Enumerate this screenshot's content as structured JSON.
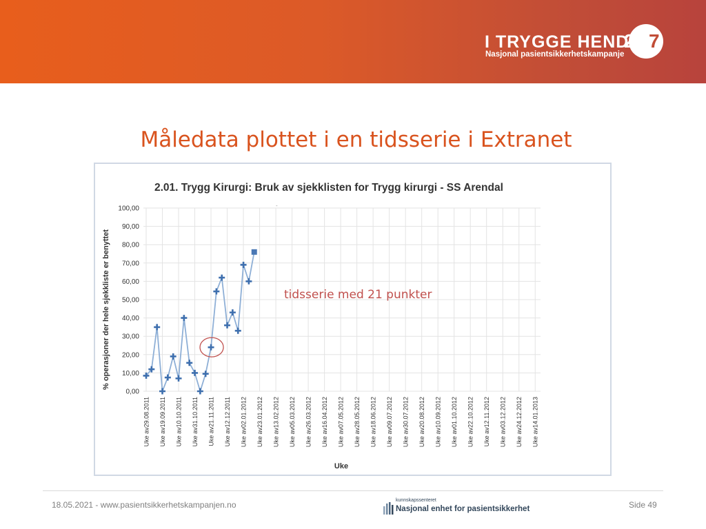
{
  "brand": {
    "title": "I TRYGGE HENDER",
    "subtitle": "Nasjonal pasientsikkerhetskampanje",
    "badge_24": "24",
    "badge_7": "7"
  },
  "slide": {
    "title": "Måledata plottet i en tidsserie i Extranet"
  },
  "chart_data": {
    "type": "line",
    "title": "2.01. Trygg Kirurgi: Bruk av sjekklisten for Trygg kirurgi - SS Arendal",
    "xlabel": "Uke",
    "ylabel": "% operasjoner der hele sjekkliste er benyttet",
    "ylim": [
      0,
      100
    ],
    "y_ticks": [
      "0,00",
      "10,00",
      "20,00",
      "30,00",
      "40,00",
      "50,00",
      "60,00",
      "70,00",
      "80,00",
      "90,00",
      "100,00"
    ],
    "grid": true,
    "categories": [
      "Uke av29.08.2011",
      "Uke av19.09.2011",
      "Uke av10.10.2011",
      "Uke av31.10.2011",
      "Uke av21.11.2011",
      "Uke av12.12.2011",
      "Uke av02.01.2012",
      "Uke av23.01.2012",
      "Uke av13.02.2012",
      "Uke av05.03.2012",
      "Uke av26.03.2012",
      "Uke av16.04.2012",
      "Uke av07.05.2012",
      "Uke av28.05.2012",
      "Uke av18.06.2012",
      "Uke av09.07.2012",
      "Uke av30.07.2012",
      "Uke av20.08.2012",
      "Uke av10.09.2012",
      "Uke av01.10.2012",
      "Uke av22.10.2012",
      "Uke av12.11.2012",
      "Uke av03.12.2012",
      "Uke av24.12.2012",
      "Uke av14.01.2013"
    ],
    "series": [
      {
        "color": "#8eafd6",
        "x": [
          0,
          0.333,
          0.667,
          1,
          1.333,
          1.667,
          2,
          2.333,
          2.667,
          3,
          3.333,
          3.667,
          4,
          4.333,
          4.667,
          5,
          5.333,
          5.667,
          6,
          6.333,
          6.667
        ],
        "values": [
          8.5,
          12,
          35,
          0,
          7.5,
          19,
          7,
          40,
          15.5,
          10,
          0,
          9.5,
          24,
          54.5,
          62,
          36,
          43,
          33,
          69,
          60,
          76
        ]
      }
    ],
    "annotation": "tidsserie med 21 punkter",
    "highlight_index": 12
  },
  "footer": {
    "left": "18.05.2021 - www.pasientsikkerhetskampanjen.no",
    "right": "Side 49",
    "logo_small": "kunnskapssenteret",
    "logo_big": "Nasjonal enhet for pasientsikkerhet"
  },
  "colors": {
    "banner": "#e85e1c",
    "title": "#d9531e",
    "series": "#8eafd6",
    "marker": "#3e6fae",
    "highlight_circle": "#c0504d",
    "annotation": "#c0504d"
  }
}
